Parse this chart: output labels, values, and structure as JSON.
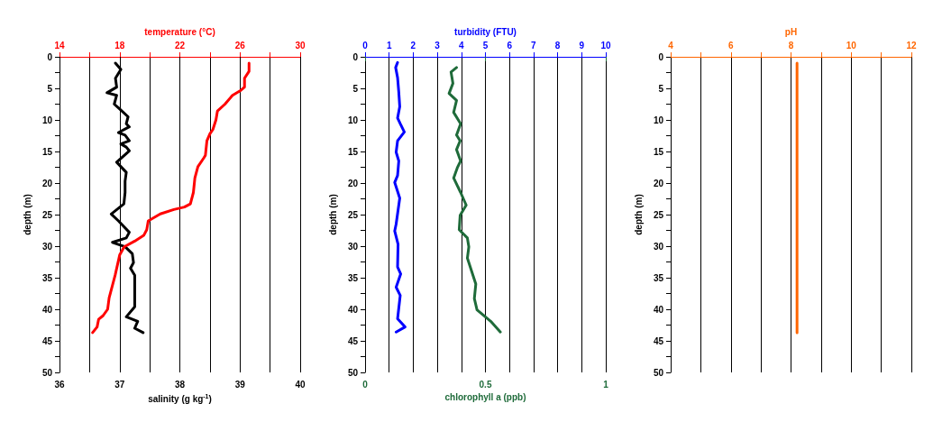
{
  "chart_data": [
    {
      "type": "line",
      "x2label": "temperature (°C)",
      "xlabel": "salinity (g kg$^{-1}$)",
      "ylabel": "depth (m)",
      "xlim": [
        36,
        40
      ],
      "xticks": [
        36,
        37,
        38,
        39,
        40
      ],
      "x2lim": [
        14,
        30
      ],
      "x2ticks": [
        14,
        {
          "value": 16,
          "label": null
        },
        18,
        {
          "value": 20,
          "label": null
        },
        22,
        {
          "value": 24,
          "label": null
        },
        26,
        {
          "value": 28,
          "label": null
        },
        30
      ],
      "ylim": [
        50,
        0
      ],
      "yticks": [
        0,
        {
          "value": 2.5,
          "label": null
        },
        5,
        {
          "value": 7.5,
          "label": null
        },
        10,
        {
          "value": 12.5,
          "label": null
        },
        15,
        {
          "value": 17.5,
          "label": null
        },
        20,
        {
          "value": 22.5,
          "label": null
        },
        25,
        {
          "value": 27.5,
          "label": null
        },
        30,
        {
          "value": 32.5,
          "label": null
        },
        35,
        {
          "value": 37.5,
          "label": null
        },
        40,
        {
          "value": 42.5,
          "label": null
        },
        45,
        {
          "value": 47.5,
          "label": null
        },
        50
      ],
      "grid": "x",
      "marker": "none",
      "line_style": "solid",
      "series": [
        {
          "color": "#000000",
          "x": [
            36.93,
            37.02,
            36.93,
            36.95,
            36.79,
            36.95,
            36.91,
            36.98,
            37.14,
            37.11,
            37.16,
            36.98,
            37.09,
            37.16,
            37.02,
            37.11,
            37.16,
            36.95,
            37.11,
            37.09,
            37.09,
            37.07,
            36.86,
            36.98,
            37.16,
            37.11,
            36.88,
            37.09,
            37.21,
            37.23,
            37.18,
            37.25,
            37.25,
            37.11,
            37.3,
            37.25,
            37.39
          ],
          "values": [
            1.0,
            2.0,
            3.4,
            4.8,
            5.7,
            6.1,
            7.5,
            8.1,
            9.5,
            10.6,
            11.1,
            12.0,
            12.4,
            13.3,
            13.8,
            14.3,
            14.9,
            16.7,
            18.3,
            19.7,
            21.5,
            23.3,
            24.9,
            26.0,
            27.8,
            28.7,
            29.4,
            30.1,
            31.2,
            32.6,
            33.5,
            34.6,
            39.6,
            41.2,
            41.9,
            43.0,
            43.7
          ]
        },
        {
          "color": "#ff0000",
          "axis": "x2",
          "x": [
            26.6,
            26.6,
            26.3,
            26.3,
            26.0,
            25.5,
            25.0,
            24.5,
            24.4,
            24.2,
            24.0,
            23.8,
            23.7,
            23.6,
            23.2,
            23.0,
            22.9,
            22.7,
            22.3,
            21.6,
            20.7,
            19.9,
            19.8,
            19.6,
            19.0,
            18.3,
            18.0,
            17.7,
            17.3,
            17.2,
            16.9,
            16.6,
            16.5,
            16.2
          ],
          "values": [
            1.0,
            2.3,
            3.4,
            4.8,
            5.4,
            6.1,
            7.5,
            8.6,
            10.0,
            11.5,
            12.2,
            13.3,
            15.6,
            16.0,
            17.4,
            19.2,
            21.5,
            23.3,
            23.8,
            24.2,
            24.9,
            26.0,
            27.4,
            28.3,
            29.2,
            30.1,
            31.4,
            34.6,
            38.2,
            40.0,
            41.0,
            41.6,
            42.8,
            43.7
          ]
        }
      ]
    },
    {
      "type": "line",
      "x2label": "turbidity (FTU)",
      "xlabel": "chlorophyll a (ppb)",
      "ylabel": "depth (m)",
      "xlim": [
        0,
        1
      ],
      "xticks": [
        0,
        0.5,
        1
      ],
      "x2lim": [
        0,
        10
      ],
      "x2ticks": [
        0,
        1,
        2,
        3,
        4,
        5,
        6,
        7,
        8,
        9,
        10
      ],
      "ylim": [
        50,
        0
      ],
      "yticks": [
        0,
        {
          "value": 2.5,
          "label": null
        },
        5,
        {
          "value": 7.5,
          "label": null
        },
        10,
        {
          "value": 12.5,
          "label": null
        },
        15,
        {
          "value": 17.5,
          "label": null
        },
        20,
        {
          "value": 22.5,
          "label": null
        },
        25,
        {
          "value": 27.5,
          "label": null
        },
        30,
        {
          "value": 32.5,
          "label": null
        },
        35,
        {
          "value": 37.5,
          "label": null
        },
        40,
        {
          "value": 42.5,
          "label": null
        },
        45,
        {
          "value": 47.5,
          "label": null
        },
        50
      ],
      "grid": "x",
      "marker": "none",
      "line_style": "solid",
      "series": [
        {
          "color": "#0000ff",
          "axis": "x2",
          "x": [
            1.35,
            1.27,
            1.35,
            1.4,
            1.44,
            1.35,
            1.46,
            1.63,
            1.35,
            1.29,
            1.4,
            1.35,
            1.23,
            1.44,
            1.29,
            1.23,
            1.37,
            1.35,
            1.48,
            1.29,
            1.46,
            1.35,
            1.66,
            1.29
          ],
          "values": [
            0.9,
            1.7,
            3.3,
            5.6,
            7.9,
            9.7,
            10.6,
            11.9,
            13.3,
            15.1,
            16.5,
            18.8,
            19.9,
            22.4,
            26.5,
            27.6,
            29.7,
            33.3,
            34.4,
            36.5,
            37.8,
            41.5,
            42.8,
            43.6
          ]
        },
        {
          "color": "#1f6b3a",
          "x": [
            0.38,
            0.357,
            0.365,
            0.349,
            0.38,
            0.368,
            0.397,
            0.38,
            0.395,
            0.38,
            0.397,
            0.383,
            0.368,
            0.397,
            0.42,
            0.395,
            0.391,
            0.425,
            0.431,
            0.425,
            0.46,
            0.454,
            0.465,
            0.522,
            0.562
          ],
          "values": [
            1.7,
            2.4,
            4.2,
            5.8,
            6.9,
            8.8,
            10.6,
            12.4,
            13.3,
            14.7,
            16.5,
            17.6,
            19.2,
            21.5,
            23.5,
            25.1,
            27.4,
            28.7,
            30.1,
            31.9,
            36.0,
            38.3,
            40.1,
            41.9,
            43.6
          ]
        }
      ]
    },
    {
      "type": "line",
      "xlabel": "pH",
      "ylabel": "depth (m)",
      "xlim": [
        4,
        12
      ],
      "xticks": [
        4,
        {
          "value": 5,
          "label": null
        },
        6,
        {
          "value": 7,
          "label": null
        },
        8,
        {
          "value": 9,
          "label": null
        },
        10,
        {
          "value": 11,
          "label": null
        },
        12
      ],
      "ylim": [
        50,
        0
      ],
      "yticks": [
        0,
        {
          "value": 2.5,
          "label": null
        },
        5,
        {
          "value": 7.5,
          "label": null
        },
        10,
        {
          "value": 12.5,
          "label": null
        },
        15,
        {
          "value": 17.5,
          "label": null
        },
        20,
        {
          "value": 22.5,
          "label": null
        },
        25,
        {
          "value": 27.5,
          "label": null
        },
        30,
        {
          "value": 32.5,
          "label": null
        },
        35,
        {
          "value": 37.5,
          "label": null
        },
        40,
        {
          "value": 42.5,
          "label": null
        },
        45,
        {
          "value": 47.5,
          "label": null
        },
        50
      ],
      "grid": "x",
      "marker": "none",
      "line_style": "solid",
      "series": [
        {
          "color": "#ff6600",
          "x": [
            8.2,
            8.2
          ],
          "values": [
            1.0,
            43.7
          ]
        }
      ]
    }
  ]
}
